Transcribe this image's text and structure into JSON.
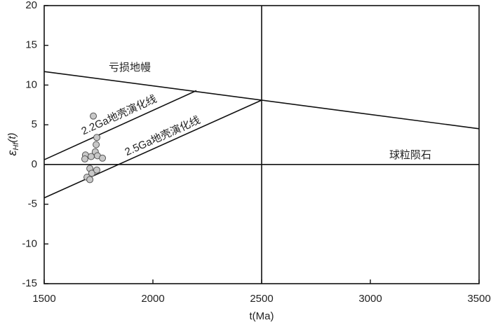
{
  "chart_data": {
    "type": "scatter",
    "x_label": "t(Ma)",
    "y_label": {
      "symbol": "ε",
      "sub": "Hf",
      "rest": "(t)"
    },
    "xlim": [
      1500,
      3500
    ],
    "xticks": [
      1500,
      2000,
      2500,
      3000,
      3500
    ],
    "ylim": [
      -15,
      20
    ],
    "yticks": [
      -15,
      -10,
      -5,
      0,
      5,
      10,
      15,
      20
    ],
    "lines": [
      {
        "name": "亏损地幔",
        "x": [
          1500,
          3500
        ],
        "y": [
          11.7,
          4.5
        ]
      },
      {
        "name": "2.2Ga地壳演化线",
        "x": [
          1500,
          2200
        ],
        "y": [
          0.6,
          9.3
        ]
      },
      {
        "name": "2.5Ga地壳演化线",
        "x": [
          1500,
          2500
        ],
        "y": [
          -4.2,
          8.1
        ]
      },
      {
        "name": "球粒陨石",
        "x": [
          1500,
          3500
        ],
        "y": [
          0,
          0
        ]
      }
    ],
    "vline": 2500,
    "points": {
      "color": "#c8c8c8",
      "x": [
        1726,
        1742,
        1739,
        1690,
        1687,
        1716,
        1735,
        1745,
        1768,
        1710,
        1719,
        1742,
        1697,
        1710
      ],
      "y": [
        6.1,
        3.4,
        2.5,
        1.2,
        0.7,
        1.0,
        1.6,
        1.1,
        0.8,
        -0.5,
        -1.1,
        -0.7,
        -1.6,
        -1.9
      ]
    }
  }
}
